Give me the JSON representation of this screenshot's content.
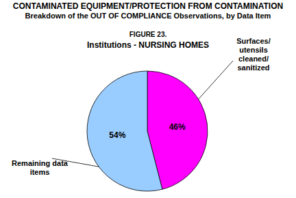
{
  "chart_data": {
    "type": "pie",
    "title": "CONTAMINATED EQUIPMENT/PROTECTION FROM CONTAMINATION",
    "subtitle": "Breakdown of the OUT OF COMPLIANCE Observations, by Data Item",
    "annotations": [
      "FIGURE 23.",
      "Institutions - NURSING HOMES"
    ],
    "categories": [
      "Surfaces/utensils cleaned/sanitized",
      "Remaining data items"
    ],
    "values": [
      46,
      54
    ],
    "value_labels": [
      "46%",
      "54%"
    ],
    "colors": [
      "#ff00ff",
      "#99ccff"
    ],
    "data_labels": true
  }
}
